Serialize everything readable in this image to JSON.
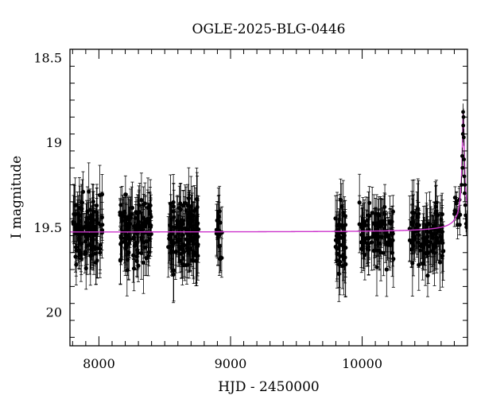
{
  "chart_data": {
    "type": "scatter",
    "title": "OGLE-2025-BLG-0446",
    "xlabel": "HJD - 2450000",
    "ylabel": "I magnitude",
    "xlim": [
      7780,
      10800
    ],
    "ylim": [
      20.2,
      18.45
    ],
    "y_inverted": true,
    "grid": false,
    "x_ticks": [
      {
        "value": 8000,
        "label": "8000"
      },
      {
        "value": 9000,
        "label": "9000"
      },
      {
        "value": 10000,
        "label": "10000"
      }
    ],
    "y_ticks": [
      {
        "value": 18.5,
        "label": "18.5"
      },
      {
        "value": 19,
        "label": "19"
      },
      {
        "value": 19.5,
        "label": "19.5"
      },
      {
        "value": 20,
        "label": "20"
      }
    ],
    "series": [
      {
        "kind": "points_with_errorbars",
        "color": "#000000",
        "segments": [
          {
            "x_start": 7800,
            "x_end": 8030,
            "mean": 19.53,
            "scatter": 0.18,
            "err": 0.13,
            "n": 110
          },
          {
            "x_start": 8160,
            "x_end": 8400,
            "mean": 19.52,
            "scatter": 0.16,
            "err": 0.13,
            "n": 120
          },
          {
            "x_start": 8525,
            "x_end": 8760,
            "mean": 19.53,
            "scatter": 0.17,
            "err": 0.14,
            "n": 130
          },
          {
            "x_start": 8885,
            "x_end": 8935,
            "mean": 19.55,
            "scatter": 0.17,
            "err": 0.13,
            "n": 18
          },
          {
            "x_start": 9795,
            "x_end": 9880,
            "mean": 19.55,
            "scatter": 0.2,
            "err": 0.15,
            "n": 45
          },
          {
            "x_start": 9975,
            "x_end": 10240,
            "mean": 19.53,
            "scatter": 0.15,
            "err": 0.13,
            "n": 95
          },
          {
            "x_start": 10360,
            "x_end": 10620,
            "mean": 19.54,
            "scatter": 0.16,
            "err": 0.14,
            "n": 95
          },
          {
            "x_start": 10700,
            "x_end": 10745,
            "mean": 19.4,
            "scatter": 0.1,
            "err": 0.08,
            "n": 12
          }
        ],
        "event_points": [
          {
            "x": 10755,
            "y": 19.25
          },
          {
            "x": 10760,
            "y": 19.08
          },
          {
            "x": 10762,
            "y": 19.15
          },
          {
            "x": 10765,
            "y": 18.95
          },
          {
            "x": 10767,
            "y": 18.82
          },
          {
            "x": 10768,
            "y": 18.9
          },
          {
            "x": 10770,
            "y": 18.85
          },
          {
            "x": 10772,
            "y": 18.97
          },
          {
            "x": 10774,
            "y": 19.1
          },
          {
            "x": 10776,
            "y": 19.2
          },
          {
            "x": 10778,
            "y": 19.3
          },
          {
            "x": 10780,
            "y": 19.25
          },
          {
            "x": 10783,
            "y": 19.37
          },
          {
            "x": 10786,
            "y": 19.43
          },
          {
            "x": 10789,
            "y": 19.48
          },
          {
            "x": 10792,
            "y": 19.5
          },
          {
            "x": 10795,
            "y": 19.45
          }
        ]
      },
      {
        "kind": "model_curve",
        "color": "#cc33cc",
        "baseline": 19.53,
        "t0": 10768,
        "peak_mag": 18.82,
        "tE": 14
      }
    ]
  }
}
